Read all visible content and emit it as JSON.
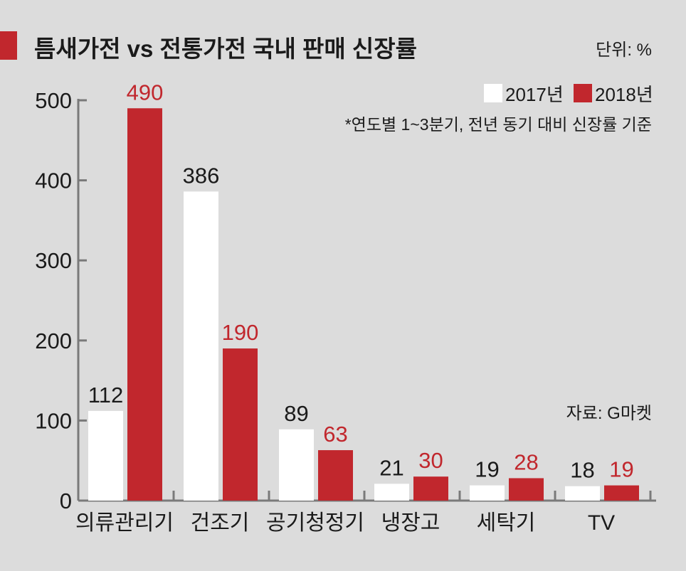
{
  "title": "틈새가전 vs 전통가전 국내 판매 신장률",
  "unit": "단위: %",
  "note": "*연도별 1~3분기, 전년 동기 대비 신장률 기준",
  "source": "자료: G마켓",
  "colors": {
    "accent": "#c1272d",
    "series_2017": "#ffffff",
    "series_2018": "#c1272d",
    "background": "#dcdcdc",
    "axis": "#7a7a7a",
    "text": "#1a1a1a"
  },
  "chart_data": {
    "type": "bar",
    "title": "틈새가전 vs 전통가전 국내 판매 신장률",
    "xlabel": "",
    "ylabel": "",
    "ylim": [
      0,
      500
    ],
    "yticks": [
      0,
      100,
      200,
      300,
      400,
      500
    ],
    "categories": [
      "의류관리기",
      "건조기",
      "공기청정기",
      "냉장고",
      "세탁기",
      "TV"
    ],
    "series": [
      {
        "name": "2017년",
        "values": [
          112,
          386,
          89,
          21,
          19,
          18
        ],
        "color": "#ffffff",
        "label_color": "#1a1a1a"
      },
      {
        "name": "2018년",
        "values": [
          490,
          190,
          63,
          30,
          28,
          19
        ],
        "color": "#c1272d",
        "label_color": "#c1272d"
      }
    ],
    "legend": "top-right",
    "grid": false
  }
}
